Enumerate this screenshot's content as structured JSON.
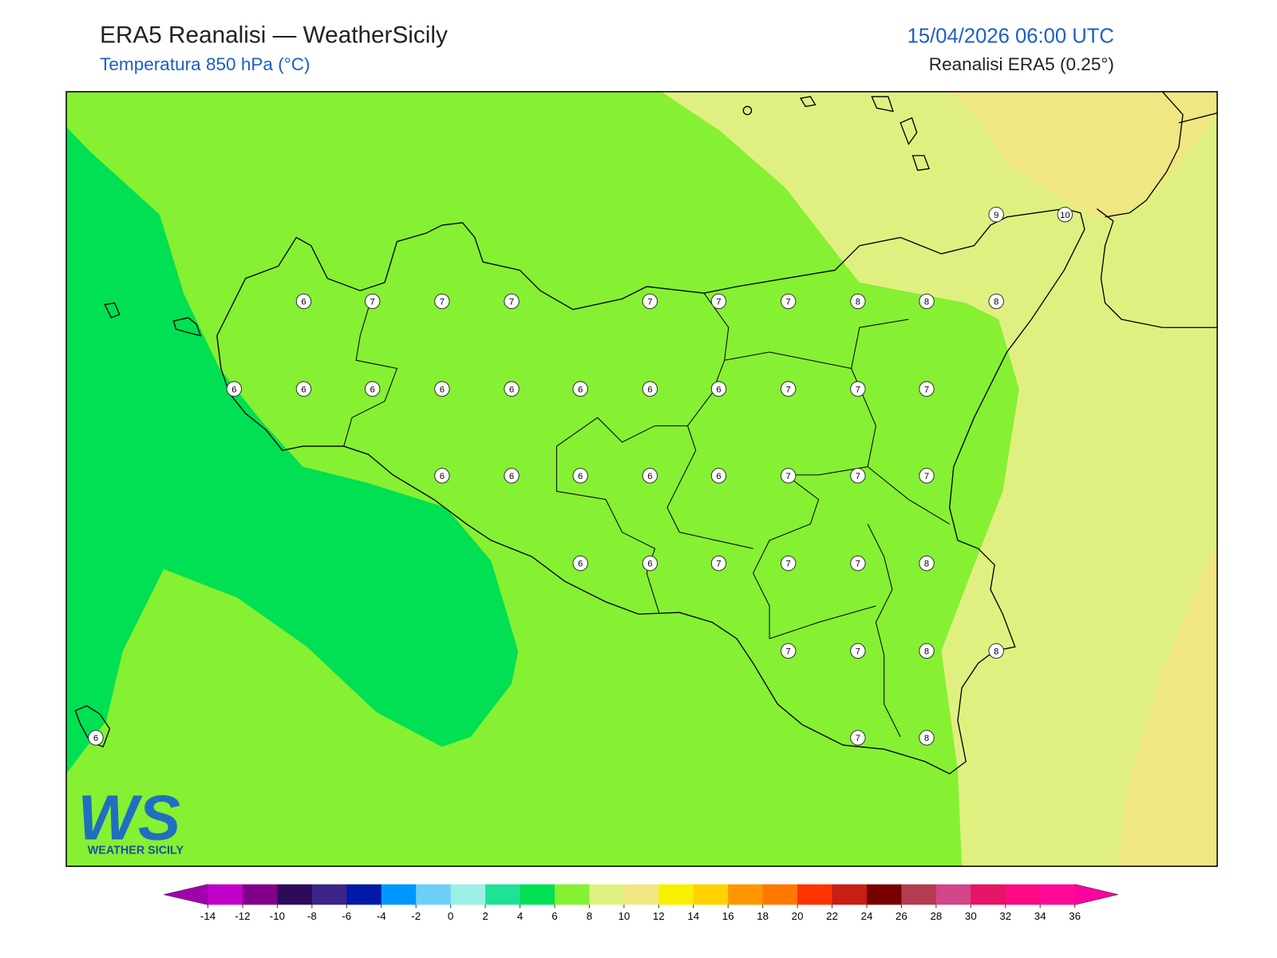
{
  "header": {
    "title": "ERA5 Reanalisi — WeatherSicily",
    "subtitle": "Temperatura 850 hPa (°C)",
    "datetime": "15/04/2026 06:00 UTC",
    "source": "Reanalisi ERA5 (0.25°)"
  },
  "logo": {
    "mark": "WS",
    "name": "WEATHER SICILY"
  },
  "stations": {
    "values": [
      6,
      7,
      7,
      7,
      7,
      7,
      7,
      8,
      8,
      8,
      9,
      10,
      6,
      6,
      6,
      6,
      6,
      6,
      6,
      6,
      7,
      7,
      7,
      6,
      6,
      6,
      6,
      6,
      7,
      7,
      7,
      6,
      6,
      7,
      7,
      7,
      8,
      7,
      7,
      8,
      8,
      6,
      7,
      8
    ]
  },
  "colorbar": {
    "levels": [
      -14,
      -12,
      -10,
      -8,
      -6,
      -4,
      -2,
      0,
      2,
      4,
      6,
      8,
      10,
      12,
      14,
      16,
      18,
      20,
      22,
      24,
      26,
      28,
      30,
      32,
      34,
      36
    ],
    "colors": [
      "#c000c8",
      "#80008a",
      "#2e0a5a",
      "#3c2488",
      "#0019a8",
      "#0096ff",
      "#6ecff6",
      "#9af0e6",
      "#1ee296",
      "#00e052",
      "#86f032",
      "#e0f080",
      "#f0e682",
      "#f8f000",
      "#ffd200",
      "#ff9600",
      "#ff7800",
      "#ff3200",
      "#c81e14",
      "#780000",
      "#b43c50",
      "#d2468c",
      "#e61464",
      "#ff0a82",
      "#ff0a96"
    ],
    "under_color": "#a000b0",
    "over_color": "#ff00a0"
  }
}
